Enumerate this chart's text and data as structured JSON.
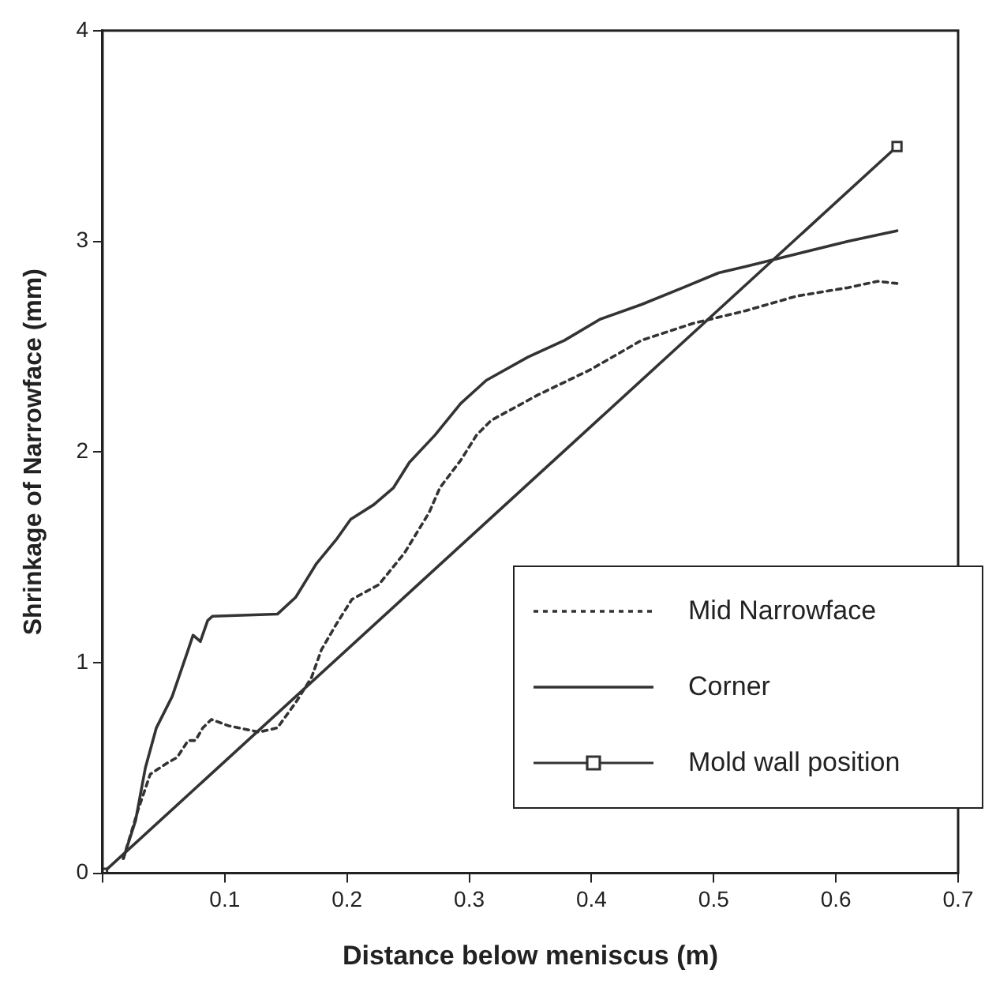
{
  "chart_data": {
    "type": "line",
    "xlabel": "Distance below meniscus (m)",
    "ylabel": "Shrinkage of Narrowface (mm)",
    "xlim": [
      0,
      0.7
    ],
    "xticks": [
      {
        "value": 0,
        "label": null
      },
      0.1,
      0.2,
      0.3,
      0.4,
      0.5,
      0.6,
      0.7
    ],
    "ylim": [
      0,
      4
    ],
    "yticks": [
      0,
      1,
      2,
      3,
      4
    ],
    "grid": false,
    "legend": "bottom right",
    "series": [
      {
        "name": "Mid Narrowface",
        "color": "#333333",
        "line_style": "dotted",
        "marker": "none",
        "x": [
          0.017,
          0.029,
          0.039,
          0.052,
          0.061,
          0.07,
          0.076,
          0.082,
          0.089,
          0.103,
          0.128,
          0.143,
          0.158,
          0.171,
          0.179,
          0.191,
          0.204,
          0.226,
          0.247,
          0.267,
          0.276,
          0.293,
          0.306,
          0.318,
          0.356,
          0.399,
          0.441,
          0.483,
          0.526,
          0.568,
          0.61,
          0.634,
          0.65
        ],
        "values": [
          0.07,
          0.3,
          0.47,
          0.52,
          0.55,
          0.63,
          0.63,
          0.69,
          0.73,
          0.7,
          0.67,
          0.69,
          0.81,
          0.93,
          1.06,
          1.18,
          1.3,
          1.37,
          1.52,
          1.71,
          1.83,
          1.96,
          2.08,
          2.15,
          2.27,
          2.39,
          2.53,
          2.61,
          2.67,
          2.74,
          2.78,
          2.81,
          2.8
        ]
      },
      {
        "name": "Corner",
        "color": "#333333",
        "line_style": "solid",
        "marker": "none",
        "x": [
          0.017,
          0.027,
          0.035,
          0.044,
          0.057,
          0.07,
          0.074,
          0.08,
          0.086,
          0.09,
          0.143,
          0.158,
          0.175,
          0.192,
          0.203,
          0.222,
          0.238,
          0.251,
          0.272,
          0.293,
          0.314,
          0.348,
          0.378,
          0.407,
          0.441,
          0.475,
          0.504,
          0.526,
          0.568,
          0.61,
          0.634,
          0.65
        ],
        "values": [
          0.07,
          0.25,
          0.5,
          0.69,
          0.84,
          1.06,
          1.13,
          1.1,
          1.2,
          1.22,
          1.23,
          1.31,
          1.47,
          1.59,
          1.68,
          1.75,
          1.83,
          1.95,
          2.08,
          2.23,
          2.34,
          2.45,
          2.53,
          2.63,
          2.7,
          2.78,
          2.85,
          2.88,
          2.94,
          3.0,
          3.03,
          3.05
        ]
      },
      {
        "name": "Mold wall position",
        "color": "#333333",
        "line_style": "solid",
        "marker": "square",
        "x": [
          0,
          0.65
        ],
        "values": [
          0,
          3.45
        ]
      }
    ]
  }
}
